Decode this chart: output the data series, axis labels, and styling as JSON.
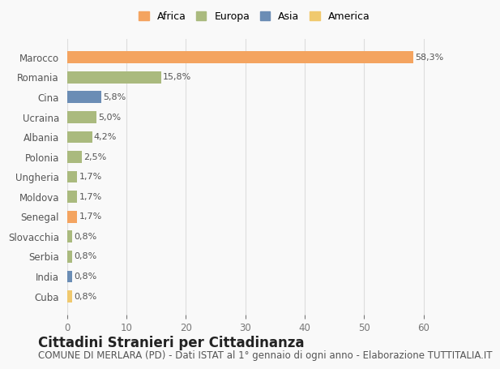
{
  "countries": [
    "Marocco",
    "Romania",
    "Cina",
    "Ucraina",
    "Albania",
    "Polonia",
    "Ungheria",
    "Moldova",
    "Senegal",
    "Slovacchia",
    "Serbia",
    "India",
    "Cuba"
  ],
  "values": [
    58.3,
    15.8,
    5.8,
    5.0,
    4.2,
    2.5,
    1.7,
    1.7,
    1.7,
    0.8,
    0.8,
    0.8,
    0.8
  ],
  "labels": [
    "58,3%",
    "15,8%",
    "5,8%",
    "5,0%",
    "4,2%",
    "2,5%",
    "1,7%",
    "1,7%",
    "1,7%",
    "0,8%",
    "0,8%",
    "0,8%",
    "0,8%"
  ],
  "continents": [
    "Africa",
    "Europa",
    "Asia",
    "Europa",
    "Europa",
    "Europa",
    "Europa",
    "Europa",
    "Africa",
    "Europa",
    "Europa",
    "Asia",
    "America"
  ],
  "continent_colors": {
    "Africa": "#F4A460",
    "Europa": "#AABA7E",
    "Asia": "#6B8DB5",
    "America": "#F0C96E"
  },
  "legend_order": [
    "Africa",
    "Europa",
    "Asia",
    "America"
  ],
  "title": "Cittadini Stranieri per Cittadinanza",
  "subtitle": "COMUNE DI MERLARA (PD) - Dati ISTAT al 1° gennaio di ogni anno - Elaborazione TUTTITALIA.IT",
  "xlim": [
    0,
    63
  ],
  "xticks": [
    0,
    10,
    20,
    30,
    40,
    50,
    60
  ],
  "background_color": "#f9f9f9",
  "grid_color": "#dddddd",
  "bar_height": 0.6,
  "title_fontsize": 12,
  "subtitle_fontsize": 8.5,
  "label_fontsize": 8,
  "tick_fontsize": 8.5,
  "legend_fontsize": 9
}
